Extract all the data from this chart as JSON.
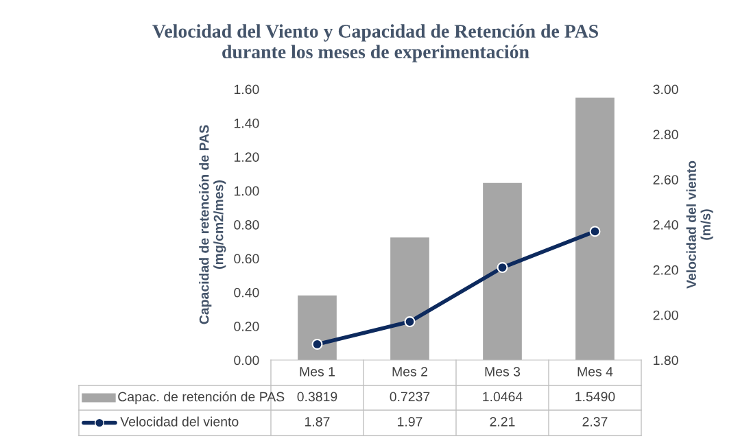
{
  "chart_data": {
    "type": "bar",
    "title": "Velocidad del Viento y Capacidad de Retención de PAS\ndurante los meses de experimentación",
    "ylabel": "Capacidad de retención de PAS\n(mg/cm2/mes)",
    "y2label": "Velocidad del viento\n(m/s)",
    "categories": [
      "Mes 1",
      "Mes 2",
      "Mes 3",
      "Mes 4"
    ],
    "series": [
      {
        "name": "Capac. de retención de PAS",
        "color": "#a6a6a6",
        "values": [
          0.3819,
          0.7237,
          1.0464,
          1.549
        ],
        "value_labels": [
          "0.3819",
          "0.7237",
          "1.0464",
          "1.5490"
        ]
      },
      {
        "name": "Velocidad del viento",
        "type": "line",
        "axis": "y2",
        "color": "#0d2a5e",
        "marker": "circle",
        "values": [
          1.87,
          1.97,
          2.21,
          2.37
        ],
        "value_labels": [
          "1.87",
          "1.97",
          "2.21",
          "2.37"
        ]
      }
    ],
    "ylim": [
      0,
      1.6
    ],
    "yticks": [
      {
        "value": 0,
        "label": "0.00"
      },
      {
        "value": 0.2,
        "label": "0.20"
      },
      {
        "value": 0.4,
        "label": "0.40"
      },
      {
        "value": 0.6,
        "label": "0.60"
      },
      {
        "value": 0.8,
        "label": "0.80"
      },
      {
        "value": 1.0,
        "label": "1.00"
      },
      {
        "value": 1.2,
        "label": "1.20"
      },
      {
        "value": 1.4,
        "label": "1.40"
      },
      {
        "value": 1.6,
        "label": "1.60"
      }
    ],
    "y2lim": [
      1.8,
      3.0
    ],
    "y2ticks": [
      {
        "value": 1.8,
        "label": "1.80"
      },
      {
        "value": 2.0,
        "label": "2.00"
      },
      {
        "value": 2.2,
        "label": "2.20"
      },
      {
        "value": 2.4,
        "label": "2.40"
      },
      {
        "value": 2.6,
        "label": "2.60"
      },
      {
        "value": 2.8,
        "label": "2.80"
      },
      {
        "value": 3.0,
        "label": "3.00"
      }
    ],
    "grid": false,
    "legend": "bottom"
  }
}
